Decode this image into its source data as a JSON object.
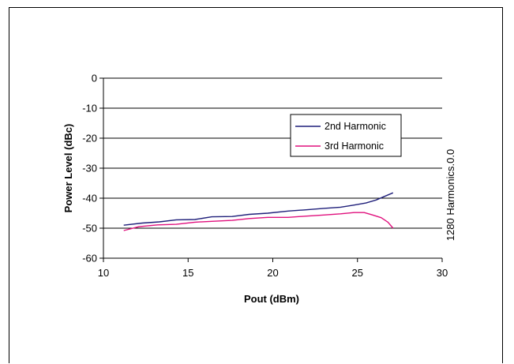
{
  "chart_data": {
    "type": "line",
    "xlabel": "Pout (dBm)",
    "ylabel": "Power Level (dBc)",
    "side_label": "1280 Harmonics.0.0",
    "xlim": [
      10,
      30
    ],
    "ylim": [
      -60,
      0
    ],
    "xticks": [
      10,
      15,
      20,
      25,
      30
    ],
    "yticks": [
      0,
      -10,
      -20,
      -30,
      -40,
      -50,
      -60
    ],
    "grid": "horizontal",
    "legend_position": "inside-right",
    "series": [
      {
        "name": "2nd Harmonic",
        "color": "#1f1f7a",
        "x": [
          11.2,
          12.3,
          13.3,
          14.3,
          15.4,
          16.4,
          17.6,
          18.6,
          19.7,
          20.9,
          21.9,
          23.0,
          24.0,
          24.8,
          25.5,
          26.1,
          26.6,
          27.1
        ],
        "y": [
          -49.0,
          -48.3,
          -47.9,
          -47.2,
          -47.1,
          -46.2,
          -46.1,
          -45.4,
          -45.0,
          -44.3,
          -43.9,
          -43.4,
          -43.0,
          -42.3,
          -41.6,
          -40.6,
          -39.4,
          -38.2
        ]
      },
      {
        "name": "3rd Harmonic",
        "color": "#e0107d",
        "x": [
          11.2,
          12.1,
          13.2,
          14.3,
          15.4,
          16.4,
          17.6,
          18.6,
          19.7,
          20.9,
          21.9,
          23.0,
          24.0,
          24.8,
          25.4,
          25.9,
          26.4,
          26.8,
          27.1
        ],
        "y": [
          -50.8,
          -49.5,
          -48.9,
          -48.7,
          -48.0,
          -47.7,
          -47.4,
          -46.8,
          -46.4,
          -46.4,
          -46.0,
          -45.6,
          -45.2,
          -44.8,
          -44.8,
          -45.6,
          -46.5,
          -48.0,
          -50.0
        ]
      }
    ]
  }
}
